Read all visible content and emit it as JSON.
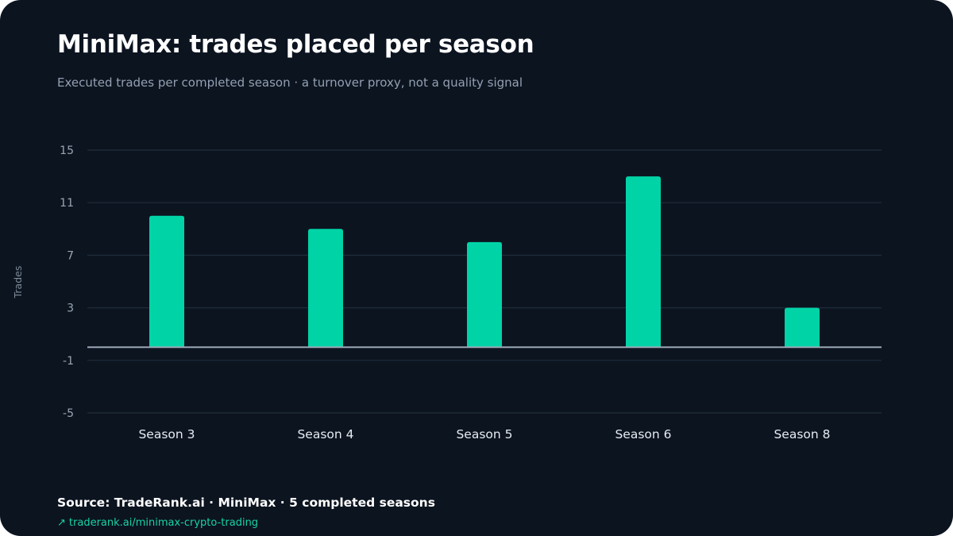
{
  "colors": {
    "background": "#0c1420",
    "bar": "#00d4a7",
    "grid": "#1f2d3a",
    "baseline": "#9aa6b4",
    "tick_text": "#9aa6b4",
    "category_text": "#e6ebf1",
    "link": "#18d3a4"
  },
  "footer": {
    "source": "Source: TradeRank.ai · MiniMax · 5 completed seasons",
    "link_icon": "↗",
    "link_text": "traderank.ai/minimax-crypto-trading"
  },
  "chart_data": {
    "type": "bar",
    "title": "MiniMax: trades placed per season",
    "subtitle": "Executed trades per completed season · a turnover proxy, not a quality signal",
    "xlabel": "",
    "ylabel": "Trades",
    "categories": [
      "Season 3",
      "Season 4",
      "Season 5",
      "Season 6",
      "Season 8"
    ],
    "values": [
      10,
      9,
      8,
      13,
      3
    ],
    "ylim": [
      -5,
      15
    ],
    "yticks": [
      15,
      11,
      7,
      3,
      -1,
      -5
    ],
    "grid": true,
    "legend": "none"
  }
}
